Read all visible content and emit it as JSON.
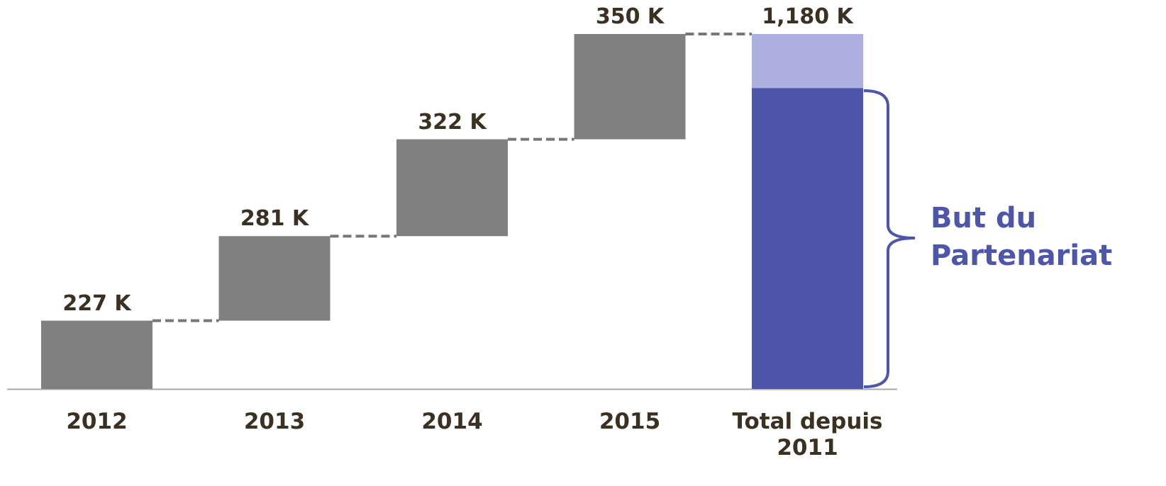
{
  "chart_data": {
    "type": "waterfall",
    "categories": [
      "2012",
      "2013",
      "2014",
      "2015",
      "Total depuis 2011"
    ],
    "values": [
      227,
      281,
      322,
      350,
      1180
    ],
    "value_labels": [
      "227 K",
      "281 K",
      "322 K",
      "350 K",
      "1,180 K"
    ],
    "colors": {
      "step": "#808080",
      "total": "#acb0de"
    },
    "annotation": {
      "text": "But du Partenariat",
      "value": 1000,
      "color": "#4d56a9"
    }
  }
}
